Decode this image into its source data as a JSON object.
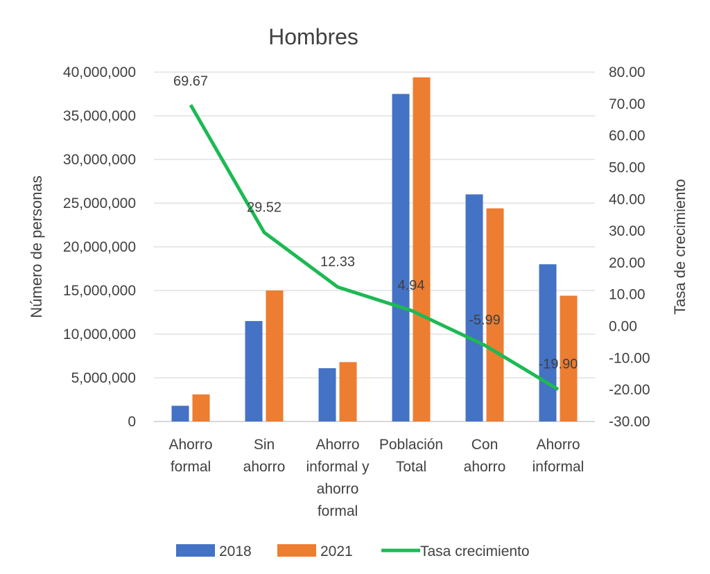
{
  "chart_data": {
    "type": "bar",
    "title": "Hombres",
    "categories": [
      [
        "Ahorro",
        "formal"
      ],
      [
        "Sin",
        "ahorro"
      ],
      [
        "Ahorro",
        "informal y",
        "ahorro",
        "formal"
      ],
      [
        "Población",
        "Total"
      ],
      [
        "Con",
        "ahorro"
      ],
      [
        "Ahorro",
        "informal"
      ]
    ],
    "series": [
      {
        "name": "2018",
        "type": "bar",
        "axis": "left",
        "color": "#4472C4",
        "values": [
          1800000,
          11500000,
          6100000,
          37500000,
          26000000,
          18000000
        ]
      },
      {
        "name": "2021",
        "type": "bar",
        "axis": "left",
        "color": "#ED7D31",
        "values": [
          3100000,
          15000000,
          6800000,
          39400000,
          24400000,
          14400000
        ]
      },
      {
        "name": "Tasa crecimiento",
        "type": "line",
        "axis": "right",
        "color": "#1DB954",
        "values": [
          69.67,
          29.52,
          12.33,
          4.94,
          -5.99,
          -19.9
        ],
        "labels": [
          "69.67",
          "29.52",
          "12.33",
          "4.94",
          "-5.99",
          "-19.90"
        ]
      }
    ],
    "ylabel": "Número de personas",
    "ylim": [
      0,
      40000000
    ],
    "yticks": [
      "0",
      "5,000,000",
      "10,000,000",
      "15,000,000",
      "20,000,000",
      "25,000,000",
      "30,000,000",
      "35,000,000",
      "40,000,000"
    ],
    "y2label": "Tasa de crecimiento",
    "y2lim": [
      -30,
      80
    ],
    "y2ticks": [
      "-30.00",
      "-20.00",
      "-10.00",
      "0.00",
      "10.00",
      "20.00",
      "30.00",
      "40.00",
      "50.00",
      "60.00",
      "70.00",
      "80.00"
    ],
    "grid": true,
    "legend": "bottom"
  }
}
